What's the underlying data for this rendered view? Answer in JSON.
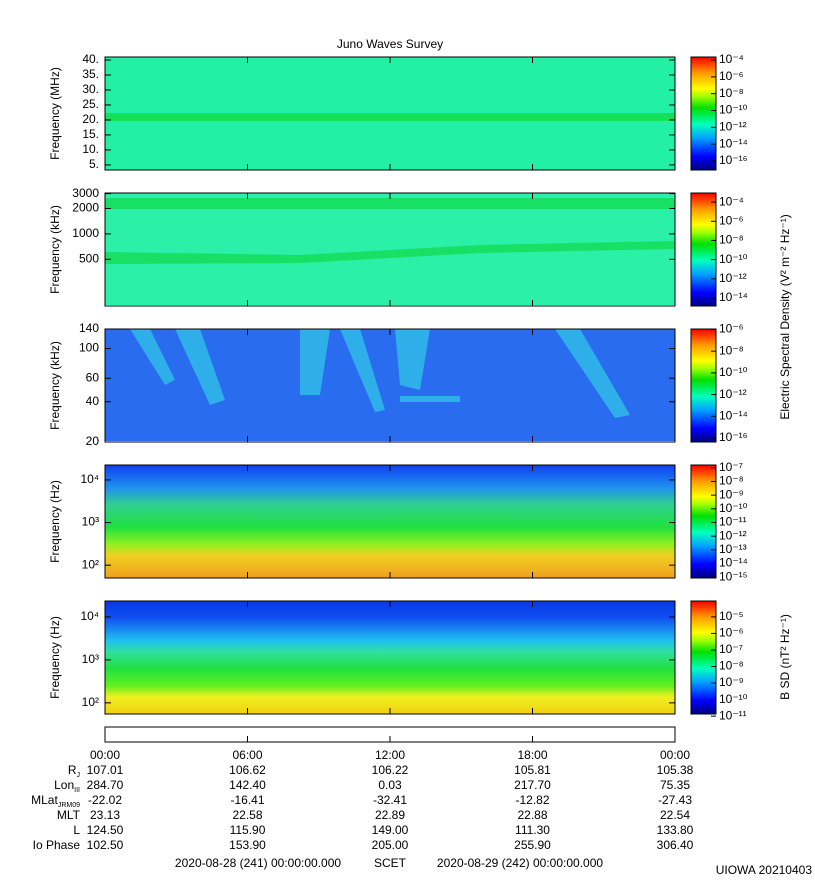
{
  "chart_data": [
    {
      "type": "spectrogram",
      "title": "Juno Waves Survey",
      "ylabel": "Frequency (MHz)",
      "yscale": "linear",
      "ylim": [
        3.3,
        41
      ],
      "yticks": [
        {
          "value": 5,
          "label": "5."
        },
        {
          "value": 10,
          "label": "10."
        },
        {
          "value": 15,
          "label": "15."
        },
        {
          "value": 20,
          "label": "20."
        },
        {
          "value": 25,
          "label": "25."
        },
        {
          "value": 30,
          "label": "30."
        },
        {
          "value": 35,
          "label": "35."
        },
        {
          "value": 40,
          "label": "40."
        }
      ],
      "xlim": [
        0,
        24
      ],
      "cscale": "log",
      "clim": [
        8.5e-18,
        0.00023
      ],
      "cticks": [
        {
          "value": 1e-16,
          "label": "10⁻¹⁶"
        },
        {
          "value": 1e-14,
          "label": "10⁻¹⁴"
        },
        {
          "value": 1e-12,
          "label": "10⁻¹²"
        },
        {
          "value": 1e-10,
          "label": "10⁻¹⁰"
        },
        {
          "value": 1e-08,
          "label": "10⁻⁸"
        },
        {
          "value": 1e-06,
          "label": "10⁻⁶"
        },
        {
          "value": 0.0001,
          "label": "10⁻⁴"
        }
      ]
    },
    {
      "type": "spectrogram",
      "ylabel": "Frequency (kHz)",
      "yscale": "log",
      "ylim": [
        140,
        3050
      ],
      "yticks": [
        500,
        1000,
        2000,
        3000
      ],
      "xlim": [
        0,
        24
      ],
      "cscale": "log",
      "clim": [
        1.45e-15,
        0.00089
      ],
      "clabel": "Electric Spectral Density (V² m⁻² Hz⁻¹)",
      "cticks": [
        {
          "value": 1e-14,
          "label": "10⁻¹⁴"
        },
        {
          "value": 1e-12,
          "label": "10⁻¹²"
        },
        {
          "value": 1e-10,
          "label": "10⁻¹⁰"
        },
        {
          "value": 1e-08,
          "label": "10⁻⁸"
        },
        {
          "value": 1e-06,
          "label": "10⁻⁶"
        },
        {
          "value": 0.0001,
          "label": "10⁻⁴"
        }
      ]
    },
    {
      "type": "spectrogram",
      "ylabel": "Frequency (kHz)",
      "yscale": "log",
      "ylim": [
        20,
        140
      ],
      "yticks": [
        20,
        40,
        60,
        100,
        140
      ],
      "xlim": [
        0,
        24
      ],
      "cscale": "log",
      "clim": [
        4.3e-17,
        1.1e-06
      ],
      "cticks": [
        {
          "value": 1e-16,
          "label": "10⁻¹⁶"
        },
        {
          "value": 1e-14,
          "label": "10⁻¹⁴"
        },
        {
          "value": 1e-12,
          "label": "10⁻¹²"
        },
        {
          "value": 1e-10,
          "label": "10⁻¹⁰"
        },
        {
          "value": 1e-08,
          "label": "10⁻⁸"
        },
        {
          "value": 1e-06,
          "label": "10⁻⁶"
        }
      ]
    },
    {
      "type": "spectrogram",
      "ylabel": "Frequency (Hz)",
      "yscale": "log",
      "ylim": [
        50,
        22400
      ],
      "yticks": [
        {
          "value": 100,
          "label": "10²"
        },
        {
          "value": 1000,
          "label": "10³"
        },
        {
          "value": 10000,
          "label": "10⁴"
        }
      ],
      "xlim": [
        0,
        24
      ],
      "cscale": "log",
      "clim": [
        8.7e-16,
        1.6e-07
      ],
      "cticks": [
        {
          "value": 1e-15,
          "label": "10⁻¹⁵"
        },
        {
          "value": 1e-14,
          "label": "10⁻¹⁴"
        },
        {
          "value": 1e-13,
          "label": "10⁻¹³"
        },
        {
          "value": 1e-12,
          "label": "10⁻¹²"
        },
        {
          "value": 1e-11,
          "label": "10⁻¹¹"
        },
        {
          "value": 1e-10,
          "label": "10⁻¹⁰"
        },
        {
          "value": 1e-09,
          "label": "10⁻⁹"
        },
        {
          "value": 1e-08,
          "label": "10⁻⁸"
        },
        {
          "value": 1e-07,
          "label": "10⁻⁷"
        }
      ]
    },
    {
      "type": "spectrogram",
      "ylabel": "Frequency (Hz)",
      "yscale": "log",
      "ylim": [
        55,
        23500
      ],
      "yticks": [
        {
          "value": 100,
          "label": "10²"
        },
        {
          "value": 1000,
          "label": "10³"
        },
        {
          "value": 10000,
          "label": "10⁴"
        }
      ],
      "xlim": [
        0,
        24
      ],
      "cscale": "log",
      "clim": [
        1.35e-11,
        9.1e-05
      ],
      "clabel": "B SD (nT² Hz⁻¹)",
      "cticks": [
        {
          "value": 1e-11,
          "label": "10⁻¹¹"
        },
        {
          "value": 1e-10,
          "label": "10⁻¹⁰"
        },
        {
          "value": 1e-09,
          "label": "10⁻⁹"
        },
        {
          "value": 1e-08,
          "label": "10⁻⁸"
        },
        {
          "value": 1e-07,
          "label": "10⁻⁷"
        },
        {
          "value": 1e-06,
          "label": "10⁻⁶"
        },
        {
          "value": 1e-05,
          "label": "10⁻⁵"
        }
      ]
    }
  ],
  "time_axis": {
    "xlim": [
      0,
      24
    ],
    "xticks": [
      {
        "value": 0,
        "label": "00:00"
      },
      {
        "value": 6,
        "label": "06:00"
      },
      {
        "value": 12,
        "label": "12:00"
      },
      {
        "value": 18,
        "label": "18:00"
      },
      {
        "value": 24,
        "label": "00:00"
      }
    ]
  },
  "ephemeris": {
    "rows": [
      {
        "label": {
          "text": "R",
          "sub": "J"
        },
        "values": [
          "107.01",
          "106.62",
          "106.22",
          "105.81",
          "105.38"
        ]
      },
      {
        "label": {
          "text": "Lon",
          "sub": "III"
        },
        "values": [
          "284.70",
          "142.40",
          "0.03",
          "217.70",
          "75.35"
        ]
      },
      {
        "label": {
          "text": "MLat",
          "sub": "JRM09"
        },
        "values": [
          "-22.02",
          "-16.41",
          "-32.41",
          "-12.82",
          "-27.43"
        ]
      },
      {
        "label": {
          "text": "MLT"
        },
        "values": [
          "23.13",
          "22.58",
          "22.89",
          "22.88",
          "22.54"
        ]
      },
      {
        "label": {
          "text": "L"
        },
        "values": [
          "124.50",
          "115.90",
          "149.00",
          "111.30",
          "133.80"
        ]
      },
      {
        "label": {
          "text": "Io Phase"
        },
        "values": [
          "102.50",
          "153.90",
          "205.00",
          "255.90",
          "306.40"
        ]
      }
    ]
  },
  "footer": {
    "start": "2020-08-28 (241) 00:00:00.000",
    "label": "SCET",
    "end": "2020-08-29 (242) 00:00:00.000",
    "credit": "UIOWA 20210403"
  }
}
